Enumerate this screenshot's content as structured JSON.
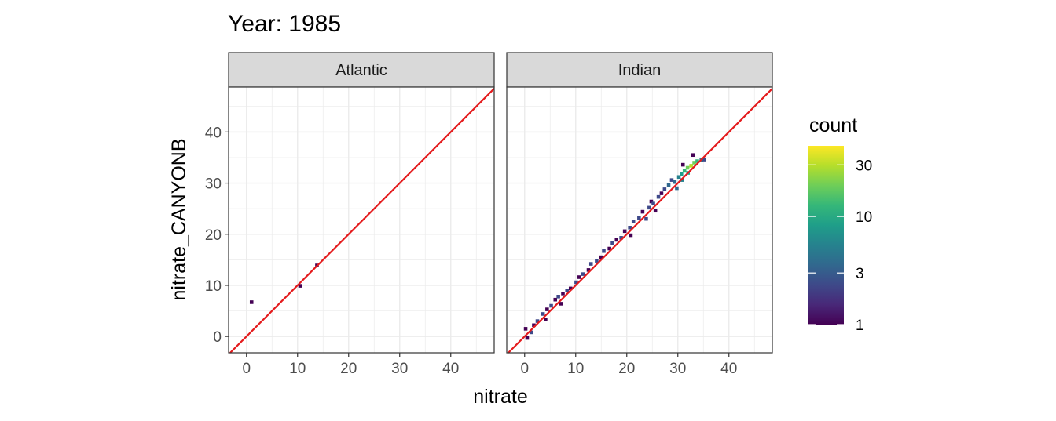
{
  "chart_data": {
    "type": "heatmap",
    "title": "Year: 1985",
    "xlabel": "nitrate",
    "ylabel": "nitrate_CANYONB",
    "xlim": [
      -3.5,
      48.5
    ],
    "ylim": [
      -3.2,
      48.8
    ],
    "x_ticks": [
      0,
      10,
      20,
      30,
      40
    ],
    "y_ticks": [
      0,
      10,
      20,
      30,
      40
    ],
    "grid": true,
    "reference_line": "y = x",
    "panels": [
      {
        "name": "Atlantic",
        "cells": [
          {
            "x": 1.0,
            "y": 6.7,
            "count": 1
          },
          {
            "x": 10.5,
            "y": 9.9,
            "count": 1
          },
          {
            "x": 13.8,
            "y": 13.9,
            "count": 1
          }
        ]
      },
      {
        "name": "Indian",
        "cells": [
          {
            "x": 0.5,
            "y": -0.3,
            "count": 1
          },
          {
            "x": 0.2,
            "y": 1.5,
            "count": 1
          },
          {
            "x": 1.3,
            "y": 0.8,
            "count": 2
          },
          {
            "x": 1.8,
            "y": 2.2,
            "count": 1
          },
          {
            "x": 2.5,
            "y": 3.0,
            "count": 2
          },
          {
            "x": 3.6,
            "y": 4.4,
            "count": 2
          },
          {
            "x": 4.4,
            "y": 5.3,
            "count": 1
          },
          {
            "x": 4.1,
            "y": 3.3,
            "count": 1
          },
          {
            "x": 5.2,
            "y": 6.0,
            "count": 2
          },
          {
            "x": 6.0,
            "y": 7.2,
            "count": 1
          },
          {
            "x": 6.6,
            "y": 7.8,
            "count": 2
          },
          {
            "x": 7.5,
            "y": 8.4,
            "count": 1
          },
          {
            "x": 7.1,
            "y": 6.4,
            "count": 1
          },
          {
            "x": 8.3,
            "y": 9.0,
            "count": 2
          },
          {
            "x": 9.0,
            "y": 9.4,
            "count": 1
          },
          {
            "x": 10.1,
            "y": 10.6,
            "count": 2
          },
          {
            "x": 10.7,
            "y": 11.6,
            "count": 1
          },
          {
            "x": 11.4,
            "y": 12.2,
            "count": 2
          },
          {
            "x": 12.5,
            "y": 13.0,
            "count": 1
          },
          {
            "x": 13.0,
            "y": 14.2,
            "count": 2
          },
          {
            "x": 14.1,
            "y": 14.8,
            "count": 2
          },
          {
            "x": 15.0,
            "y": 15.5,
            "count": 1
          },
          {
            "x": 15.5,
            "y": 16.7,
            "count": 2
          },
          {
            "x": 16.6,
            "y": 17.2,
            "count": 1
          },
          {
            "x": 17.2,
            "y": 18.3,
            "count": 2
          },
          {
            "x": 18.0,
            "y": 18.9,
            "count": 1
          },
          {
            "x": 18.9,
            "y": 19.3,
            "count": 2
          },
          {
            "x": 19.6,
            "y": 20.6,
            "count": 1
          },
          {
            "x": 20.6,
            "y": 21.3,
            "count": 2
          },
          {
            "x": 20.8,
            "y": 19.8,
            "count": 1
          },
          {
            "x": 21.3,
            "y": 22.5,
            "count": 2
          },
          {
            "x": 22.4,
            "y": 23.2,
            "count": 2
          },
          {
            "x": 23.1,
            "y": 24.4,
            "count": 1
          },
          {
            "x": 23.8,
            "y": 23.0,
            "count": 2
          },
          {
            "x": 24.4,
            "y": 25.2,
            "count": 2
          },
          {
            "x": 24.8,
            "y": 26.4,
            "count": 1
          },
          {
            "x": 25.6,
            "y": 24.6,
            "count": 1
          },
          {
            "x": 25.2,
            "y": 26.0,
            "count": 2
          },
          {
            "x": 26.2,
            "y": 27.3,
            "count": 2
          },
          {
            "x": 26.8,
            "y": 28.0,
            "count": 1
          },
          {
            "x": 27.4,
            "y": 28.8,
            "count": 2
          },
          {
            "x": 28.2,
            "y": 29.6,
            "count": 3
          },
          {
            "x": 28.8,
            "y": 30.6,
            "count": 2
          },
          {
            "x": 29.4,
            "y": 30.2,
            "count": 4
          },
          {
            "x": 30.2,
            "y": 31.2,
            "count": 6
          },
          {
            "x": 30.7,
            "y": 31.8,
            "count": 10
          },
          {
            "x": 31.3,
            "y": 32.4,
            "count": 14
          },
          {
            "x": 31.9,
            "y": 33.0,
            "count": 22
          },
          {
            "x": 32.6,
            "y": 33.4,
            "count": 30
          },
          {
            "x": 33.2,
            "y": 34.0,
            "count": 18
          },
          {
            "x": 33.8,
            "y": 34.3,
            "count": 12
          },
          {
            "x": 34.6,
            "y": 34.5,
            "count": 6
          },
          {
            "x": 35.2,
            "y": 34.6,
            "count": 2
          },
          {
            "x": 33.0,
            "y": 35.5,
            "count": 1
          },
          {
            "x": 29.8,
            "y": 29.0,
            "count": 3
          },
          {
            "x": 30.8,
            "y": 30.6,
            "count": 5
          },
          {
            "x": 32.0,
            "y": 32.0,
            "count": 8
          },
          {
            "x": 31.0,
            "y": 33.6,
            "count": 1
          }
        ]
      }
    ],
    "legend": {
      "title": "count",
      "scale": "log",
      "breaks": [
        1,
        3,
        10,
        30
      ],
      "range": [
        1,
        45
      ],
      "placement": "right",
      "colors": [
        "#440154",
        "#482878",
        "#3e4989",
        "#31688e",
        "#26828e",
        "#1f9e89",
        "#35b779",
        "#6ece58",
        "#b5de2b",
        "#fde725"
      ]
    },
    "line_color": "#e41a1c",
    "strip_fill": "#d9d9d9"
  }
}
